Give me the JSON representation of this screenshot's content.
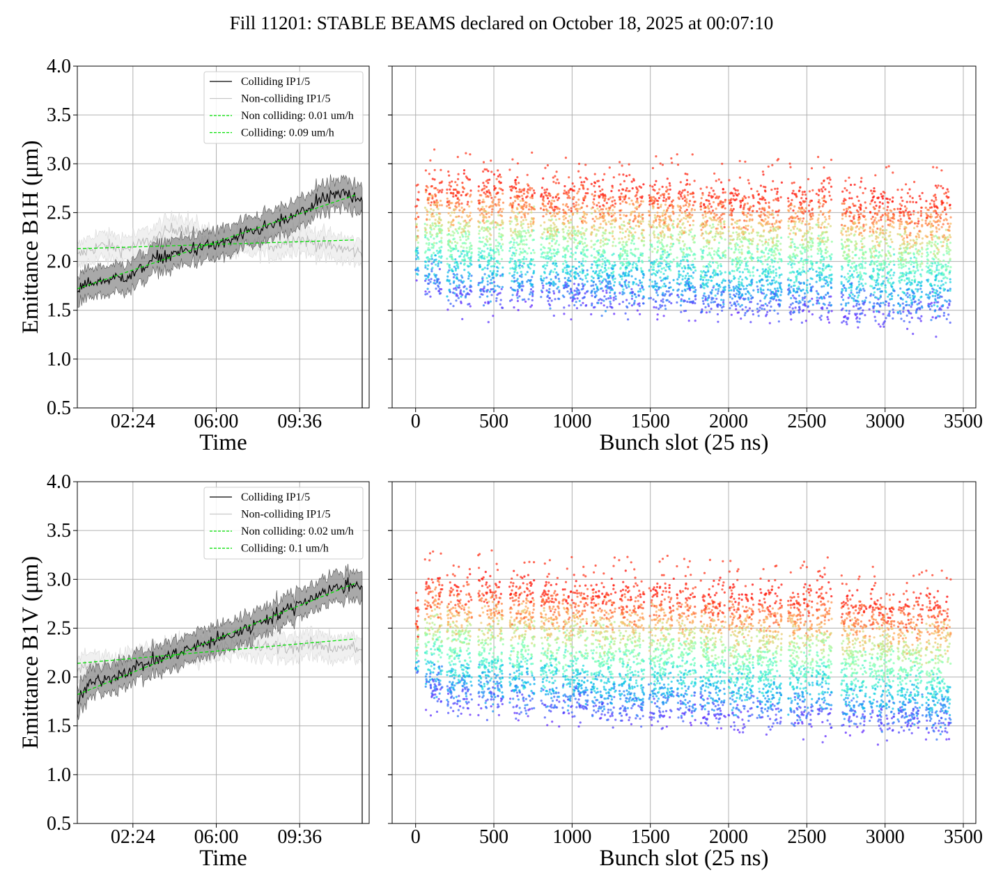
{
  "suptitle": "Fill 11201: STABLE BEAMS declared on October 18, 2025 at 00:07:10",
  "colors": {
    "colliding": "#000000",
    "colliding_band": "#8c8c8c",
    "non_colliding": "#c8c8c8",
    "non_colliding_band": "#e6e6e6",
    "fit": "#00e000",
    "grid": "#b0b0b0",
    "scatter_colormap": "rainbow"
  },
  "chart_data": [
    {
      "id": "b1h-time",
      "type": "line",
      "xlabel": "Time",
      "ylabel": "Emittance B1H (μm)",
      "xlim": [
        0.0,
        12.6
      ],
      "ylim": [
        0.5,
        4.0
      ],
      "x_ticks": [
        {
          "v": 2.4,
          "label": "02:24"
        },
        {
          "v": 6.0,
          "label": "06:00"
        },
        {
          "v": 9.6,
          "label": "09:36"
        }
      ],
      "y_ticks": [
        "0.5",
        "1.0",
        "1.5",
        "2.0",
        "2.5",
        "3.0",
        "3.5",
        "4.0"
      ],
      "grid": true,
      "legend_position": "upper right",
      "legend": [
        "Colliding IP1/5",
        "Non-colliding IP1/5",
        "Non colliding: 0.01 um/h",
        "Colliding: 0.09 um/h"
      ],
      "series": [
        {
          "name": "Colliding IP1/5",
          "style": "mean-band",
          "x": [
            0.0,
            0.5,
            1.0,
            1.5,
            2.0,
            2.5,
            3.0,
            3.5,
            4.0,
            4.5,
            5.0,
            5.5,
            6.0,
            6.5,
            7.0,
            7.5,
            8.0,
            8.5,
            9.0,
            9.5,
            10.0,
            10.5,
            11.0,
            11.5,
            12.0,
            12.3
          ],
          "mean": [
            1.7,
            1.78,
            1.8,
            1.82,
            1.84,
            1.88,
            1.97,
            2.04,
            2.06,
            2.1,
            2.13,
            2.15,
            2.17,
            2.2,
            2.25,
            2.3,
            2.34,
            2.38,
            2.42,
            2.48,
            2.55,
            2.62,
            2.66,
            2.7,
            2.67,
            2.65
          ],
          "spread": 0.12
        },
        {
          "name": "Non-colliding IP1/5",
          "style": "mean-band",
          "x": [
            0.0,
            0.5,
            1.0,
            1.5,
            2.0,
            2.5,
            3.0,
            3.5,
            4.0,
            4.5,
            5.0,
            5.5,
            6.0,
            6.5,
            7.0,
            7.5,
            8.0,
            8.5,
            9.0,
            9.5,
            10.0,
            10.5,
            11.0,
            11.5,
            12.0,
            12.3
          ],
          "mean": [
            2.05,
            2.12,
            2.16,
            2.15,
            2.12,
            2.16,
            2.2,
            2.25,
            2.32,
            2.35,
            2.28,
            2.22,
            2.2,
            2.18,
            2.2,
            2.18,
            2.2,
            2.16,
            2.2,
            2.24,
            2.2,
            2.18,
            2.15,
            2.13,
            2.1,
            2.08
          ],
          "spread": 0.1
        },
        {
          "name": "Non colliding: 0.01 um/h",
          "style": "fit",
          "x": [
            0.0,
            12.0
          ],
          "y": [
            2.13,
            2.22
          ]
        },
        {
          "name": "Colliding: 0.09 um/h",
          "style": "fit",
          "x": [
            0.0,
            12.0
          ],
          "y": [
            1.72,
            2.68
          ]
        }
      ]
    },
    {
      "id": "b1h-bunch",
      "type": "scatter",
      "xlabel": "Bunch slot (25 ns)",
      "xlim": [
        -150,
        3580
      ],
      "ylim": [
        0.5,
        4.0
      ],
      "x_ticks": [
        "0",
        "500",
        "1000",
        "1500",
        "2000",
        "2500",
        "3000",
        "3500"
      ],
      "y_ticks": [
        "0.5",
        "1.0",
        "1.5",
        "2.0",
        "2.5",
        "3.0",
        "3.5",
        "4.0"
      ],
      "grid": true,
      "colormap": "rainbow",
      "trains": [
        {
          "start": 0,
          "end": 20,
          "low": 1.9,
          "high": 2.5
        },
        {
          "start": 60,
          "end": 170,
          "low": 1.7,
          "high": 2.8
        },
        {
          "start": 200,
          "end": 360,
          "low": 1.6,
          "high": 2.8
        },
        {
          "start": 400,
          "end": 560,
          "low": 1.6,
          "high": 2.8
        },
        {
          "start": 600,
          "end": 760,
          "low": 1.6,
          "high": 2.8
        },
        {
          "start": 800,
          "end": 920,
          "low": 1.6,
          "high": 2.75
        },
        {
          "start": 940,
          "end": 1100,
          "low": 1.6,
          "high": 2.75
        },
        {
          "start": 1120,
          "end": 1280,
          "low": 1.55,
          "high": 2.75
        },
        {
          "start": 1300,
          "end": 1460,
          "low": 1.55,
          "high": 2.75
        },
        {
          "start": 1490,
          "end": 1650,
          "low": 1.55,
          "high": 2.75
        },
        {
          "start": 1670,
          "end": 1790,
          "low": 1.55,
          "high": 2.75
        },
        {
          "start": 1820,
          "end": 1980,
          "low": 1.5,
          "high": 2.7
        },
        {
          "start": 2000,
          "end": 2160,
          "low": 1.5,
          "high": 2.7
        },
        {
          "start": 2180,
          "end": 2340,
          "low": 1.5,
          "high": 2.7
        },
        {
          "start": 2380,
          "end": 2540,
          "low": 1.5,
          "high": 2.7
        },
        {
          "start": 2560,
          "end": 2660,
          "low": 1.5,
          "high": 2.75
        },
        {
          "start": 2720,
          "end": 2880,
          "low": 1.45,
          "high": 2.65
        },
        {
          "start": 2900,
          "end": 3060,
          "low": 1.45,
          "high": 2.65
        },
        {
          "start": 3080,
          "end": 3240,
          "low": 1.45,
          "high": 2.6
        },
        {
          "start": 3260,
          "end": 3420,
          "low": 1.45,
          "high": 2.65
        }
      ]
    },
    {
      "id": "b1v-time",
      "type": "line",
      "xlabel": "Time",
      "ylabel": "Emittance B1V (μm)",
      "xlim": [
        0.0,
        12.6
      ],
      "ylim": [
        0.5,
        4.0
      ],
      "x_ticks": [
        {
          "v": 2.4,
          "label": "02:24"
        },
        {
          "v": 6.0,
          "label": "06:00"
        },
        {
          "v": 9.6,
          "label": "09:36"
        }
      ],
      "y_ticks": [
        "0.5",
        "1.0",
        "1.5",
        "2.0",
        "2.5",
        "3.0",
        "3.5",
        "4.0"
      ],
      "grid": true,
      "legend_position": "upper right",
      "legend": [
        "Colliding IP1/5",
        "Non-colliding IP1/5",
        "Non colliding: 0.02 um/h",
        "Colliding: 0.1 um/h"
      ],
      "series": [
        {
          "name": "Colliding IP1/5",
          "style": "mean-band",
          "x": [
            0.0,
            0.5,
            1.0,
            1.5,
            2.0,
            2.5,
            3.0,
            3.5,
            4.0,
            4.5,
            5.0,
            5.5,
            6.0,
            6.5,
            7.0,
            7.5,
            8.0,
            8.5,
            9.0,
            9.5,
            10.0,
            10.5,
            11.0,
            11.5,
            12.0,
            12.3
          ],
          "mean": [
            1.75,
            1.92,
            1.97,
            2.0,
            2.05,
            2.1,
            2.14,
            2.18,
            2.22,
            2.26,
            2.3,
            2.34,
            2.38,
            2.42,
            2.46,
            2.52,
            2.58,
            2.63,
            2.68,
            2.74,
            2.8,
            2.86,
            2.9,
            2.93,
            2.95,
            2.95
          ],
          "spread": 0.12
        },
        {
          "name": "Non-colliding IP1/5",
          "style": "mean-band",
          "x": [
            0.0,
            0.5,
            1.0,
            1.5,
            2.0,
            2.5,
            3.0,
            3.5,
            4.0,
            4.5,
            5.0,
            5.5,
            6.0,
            6.5,
            7.0,
            7.5,
            8.0,
            8.5,
            9.0,
            9.5,
            10.0,
            10.5,
            11.0,
            11.5,
            12.0,
            12.3
          ],
          "mean": [
            2.05,
            2.15,
            2.1,
            2.08,
            2.12,
            2.16,
            2.18,
            2.2,
            2.24,
            2.26,
            2.28,
            2.3,
            2.32,
            2.34,
            2.33,
            2.32,
            2.3,
            2.32,
            2.3,
            2.32,
            2.33,
            2.32,
            2.3,
            2.31,
            2.29,
            2.28
          ],
          "spread": 0.1
        },
        {
          "name": "Non colliding: 0.02 um/h",
          "style": "fit",
          "x": [
            0.0,
            12.0
          ],
          "y": [
            2.14,
            2.39
          ]
        },
        {
          "name": "Colliding: 0.1 um/h",
          "style": "fit",
          "x": [
            0.0,
            12.0
          ],
          "y": [
            1.82,
            2.96
          ]
        }
      ]
    },
    {
      "id": "b1v-bunch",
      "type": "scatter",
      "xlabel": "Bunch slot (25 ns)",
      "xlim": [
        -150,
        3580
      ],
      "ylim": [
        0.5,
        4.0
      ],
      "x_ticks": [
        "0",
        "500",
        "1000",
        "1500",
        "2000",
        "2500",
        "3000",
        "3500"
      ],
      "y_ticks": [
        "0.5",
        "1.0",
        "1.5",
        "2.0",
        "2.5",
        "3.0",
        "3.5",
        "4.0"
      ],
      "grid": true,
      "colormap": "rainbow",
      "trains": [
        {
          "start": 0,
          "end": 20,
          "low": 2.0,
          "high": 2.6
        },
        {
          "start": 60,
          "end": 170,
          "low": 1.8,
          "high": 2.95
        },
        {
          "start": 200,
          "end": 360,
          "low": 1.7,
          "high": 2.95
        },
        {
          "start": 400,
          "end": 560,
          "low": 1.7,
          "high": 2.95
        },
        {
          "start": 600,
          "end": 760,
          "low": 1.65,
          "high": 2.95
        },
        {
          "start": 800,
          "end": 920,
          "low": 1.65,
          "high": 2.9
        },
        {
          "start": 940,
          "end": 1100,
          "low": 1.65,
          "high": 2.9
        },
        {
          "start": 1120,
          "end": 1280,
          "low": 1.6,
          "high": 2.9
        },
        {
          "start": 1300,
          "end": 1460,
          "low": 1.6,
          "high": 2.9
        },
        {
          "start": 1490,
          "end": 1650,
          "low": 1.6,
          "high": 2.9
        },
        {
          "start": 1670,
          "end": 1790,
          "low": 1.6,
          "high": 2.9
        },
        {
          "start": 1820,
          "end": 1980,
          "low": 1.6,
          "high": 2.85
        },
        {
          "start": 2000,
          "end": 2160,
          "low": 1.55,
          "high": 2.85
        },
        {
          "start": 2180,
          "end": 2340,
          "low": 1.55,
          "high": 2.85
        },
        {
          "start": 2380,
          "end": 2540,
          "low": 1.55,
          "high": 2.85
        },
        {
          "start": 2560,
          "end": 2660,
          "low": 1.55,
          "high": 2.9
        },
        {
          "start": 2720,
          "end": 2880,
          "low": 1.5,
          "high": 2.8
        },
        {
          "start": 2900,
          "end": 3060,
          "low": 1.5,
          "high": 2.8
        },
        {
          "start": 3080,
          "end": 3240,
          "low": 1.5,
          "high": 2.75
        },
        {
          "start": 3260,
          "end": 3420,
          "low": 1.45,
          "high": 2.8
        }
      ]
    }
  ]
}
